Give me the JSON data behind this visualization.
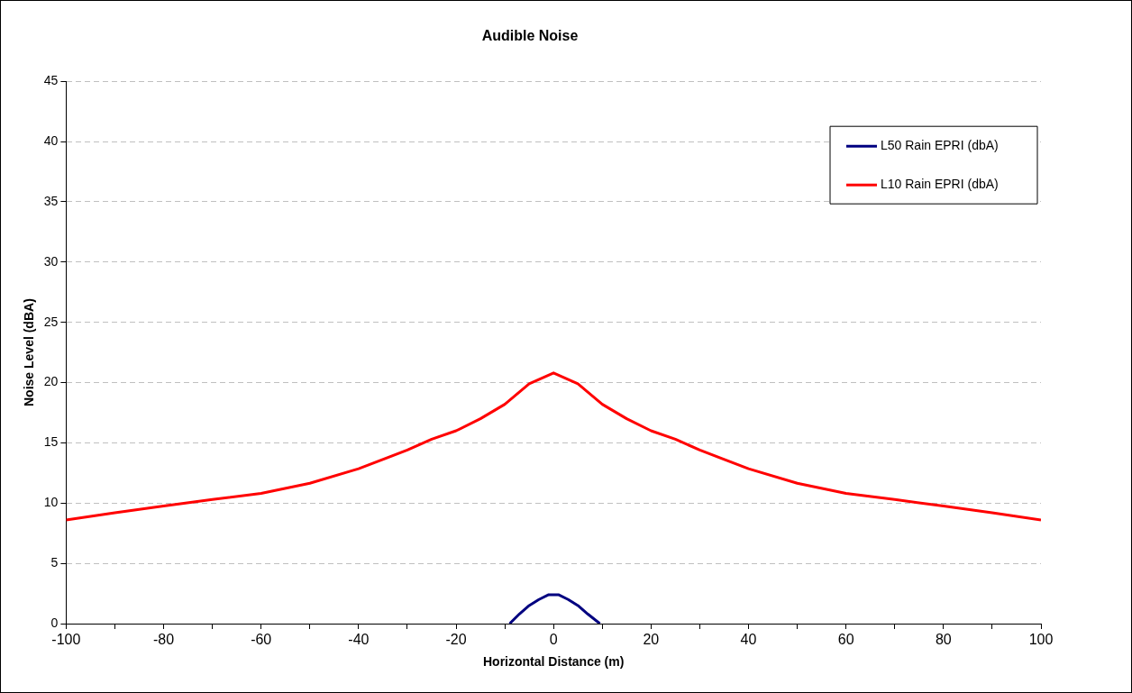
{
  "chart_data": {
    "type": "line",
    "title": "Audible Noise",
    "xlabel": "Horizontal Distance (m)",
    "ylabel": "Noise Level (dBA)",
    "xlim": [
      -100,
      100
    ],
    "xticks": [
      -100,
      {
        "value": -90,
        "label": null
      },
      -80,
      {
        "value": -70,
        "label": null
      },
      -60,
      {
        "value": -50,
        "label": null
      },
      -40,
      {
        "value": -30,
        "label": null
      },
      -20,
      {
        "value": -10,
        "label": null
      },
      0,
      {
        "value": 10,
        "label": null
      },
      20,
      {
        "value": 30,
        "label": null
      },
      40,
      {
        "value": 50,
        "label": null
      },
      60,
      {
        "value": 70,
        "label": null
      },
      80,
      {
        "value": 90,
        "label": null
      },
      100
    ],
    "ylim": [
      0,
      45
    ],
    "yticks": [
      0,
      5,
      10,
      15,
      20,
      25,
      30,
      35,
      40,
      45
    ],
    "grid": "y",
    "line_style": "solid",
    "marker": "none",
    "legend": "top right",
    "series": [
      {
        "name": "L50 Rain EPRI (dbA)",
        "color": "#000080",
        "x": [
          -9,
          -7,
          -5,
          -3,
          -1,
          0,
          1,
          3,
          5,
          7,
          9.5
        ],
        "values": [
          0,
          0.8,
          1.5,
          2.0,
          2.4,
          2.4,
          2.4,
          2.0,
          1.5,
          0.8,
          0
        ]
      },
      {
        "name": "L10 Rain EPRI (dbA)",
        "color": "#ff0000",
        "x": [
          -100,
          -90,
          -80,
          -70,
          -60,
          -50,
          -40,
          -30,
          -25,
          -20,
          -15,
          -10,
          -5,
          0,
          5,
          10,
          15,
          20,
          25,
          30,
          40,
          50,
          60,
          70,
          80,
          90,
          100
        ],
        "values": [
          8.6,
          9.2,
          9.75,
          10.3,
          10.8,
          11.65,
          12.85,
          14.4,
          15.3,
          16.0,
          17.0,
          18.2,
          19.9,
          20.8,
          19.9,
          18.2,
          17.0,
          16.0,
          15.3,
          14.4,
          12.85,
          11.65,
          10.8,
          10.3,
          9.75,
          9.2,
          8.6
        ]
      }
    ]
  }
}
